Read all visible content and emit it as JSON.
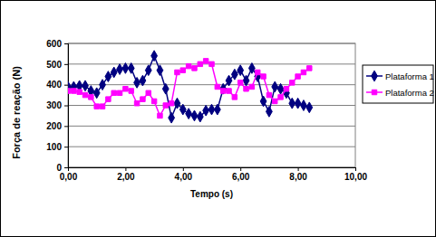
{
  "chart_data": {
    "type": "line",
    "x_label": "Tempo (s)",
    "y_label": "Força de reação (N)",
    "x": [
      0,
      0.2,
      0.4,
      0.6,
      0.8,
      1.0,
      1.2,
      1.4,
      1.6,
      1.8,
      2.0,
      2.2,
      2.4,
      2.6,
      2.8,
      3.0,
      3.2,
      3.4,
      3.6,
      3.8,
      4.0,
      4.2,
      4.4,
      4.6,
      4.8,
      5.0,
      5.2,
      5.4,
      5.6,
      5.8,
      6.0,
      6.2,
      6.4,
      6.6,
      6.8,
      7.0,
      7.2,
      7.4,
      7.6,
      7.8,
      8.0,
      8.2,
      8.4
    ],
    "series": [
      {
        "name": "Plataforma 1",
        "color": "#000080",
        "marker": "diamond",
        "line_style": "solid",
        "values": [
          390,
          390,
          395,
          395,
          370,
          360,
          400,
          440,
          460,
          475,
          480,
          480,
          410,
          420,
          470,
          540,
          470,
          380,
          240,
          310,
          280,
          260,
          250,
          245,
          275,
          280,
          280,
          380,
          420,
          450,
          470,
          420,
          480,
          440,
          320,
          270,
          390,
          380,
          360,
          310,
          310,
          300,
          290
        ]
      },
      {
        "name": "Plataforma 2",
        "color": "#ff00ff",
        "marker": "square",
        "line_style": "solid",
        "values": [
          370,
          370,
          365,
          350,
          340,
          295,
          295,
          330,
          360,
          360,
          380,
          370,
          310,
          330,
          360,
          320,
          250,
          300,
          310,
          460,
          470,
          490,
          480,
          500,
          515,
          500,
          390,
          370,
          370,
          340,
          410,
          380,
          390,
          460,
          440,
          350,
          320,
          340,
          380,
          410,
          440,
          460,
          480
        ]
      }
    ],
    "xlim": [
      0,
      10
    ],
    "xticks": [
      {
        "value": 0,
        "label": "0,00"
      },
      {
        "value": 2,
        "label": "2,00"
      },
      {
        "value": 4,
        "label": "4,00"
      },
      {
        "value": 6,
        "label": "6,00"
      },
      {
        "value": 8,
        "label": "8,00"
      },
      {
        "value": 10,
        "label": "10,00"
      }
    ],
    "ylim": [
      0,
      600
    ],
    "yticks": [
      0,
      100,
      200,
      300,
      400,
      500,
      600
    ],
    "grid": true,
    "legend": "right"
  }
}
